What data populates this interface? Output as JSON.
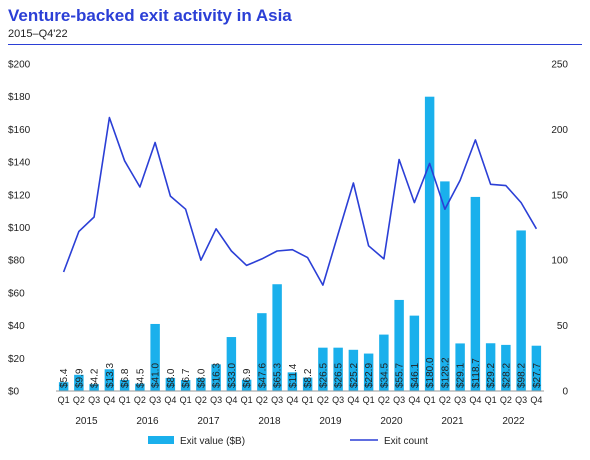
{
  "header": {
    "title": "Venture-backed exit activity in Asia",
    "subtitle": "2015–Q4'22"
  },
  "chart_data": {
    "type": "bar",
    "title": "Venture-backed exit activity in Asia",
    "subtitle": "2015–Q4'22",
    "categories": [
      "Q1",
      "Q2",
      "Q3",
      "Q4",
      "Q1",
      "Q2",
      "Q3",
      "Q4",
      "Q1",
      "Q2",
      "Q3",
      "Q4",
      "Q1",
      "Q2",
      "Q3",
      "Q4",
      "Q1",
      "Q2",
      "Q3",
      "Q4",
      "Q1",
      "Q2",
      "Q3",
      "Q4",
      "Q1",
      "Q2",
      "Q3",
      "Q4",
      "Q1",
      "Q2",
      "Q3",
      "Q4"
    ],
    "years": [
      "2015",
      "2016",
      "2017",
      "2018",
      "2019",
      "2020",
      "2021",
      "2022"
    ],
    "value_labels": [
      "$5.4",
      "$9.9",
      "$4.2",
      "$13.3",
      "$6.8",
      "$4.5",
      "$41.0",
      "$8.0",
      "$6.7",
      "$8.0",
      "$16.3",
      "$33.0",
      "$6.9",
      "$47.6",
      "$65.3",
      "$11.4",
      "$8.2",
      "$26.5",
      "$26.5",
      "$25.2",
      "$22.9",
      "$34.5",
      "$55.7",
      "$46.1",
      "$180.0",
      "$128.2",
      "$29.1",
      "$118.7",
      "$29.2",
      "$28.2",
      "$98.2",
      "$27.7"
    ],
    "series": [
      {
        "name": "Exit value ($B)",
        "type": "bar",
        "axis": "left",
        "color": "#1ab0ec",
        "values": [
          5.4,
          9.9,
          4.2,
          13.3,
          6.8,
          4.5,
          41.0,
          8.0,
          6.7,
          8.0,
          16.3,
          33.0,
          6.9,
          47.6,
          65.3,
          11.4,
          8.2,
          26.5,
          26.5,
          25.2,
          22.9,
          34.5,
          55.7,
          46.1,
          180.0,
          128.2,
          29.1,
          118.7,
          29.2,
          28.2,
          98.2,
          27.7
        ]
      },
      {
        "name": "Exit count",
        "type": "line",
        "axis": "right",
        "color": "#2b3fd6",
        "values": [
          91,
          122,
          133,
          209,
          176,
          156,
          190,
          149,
          139,
          100,
          124,
          107,
          96,
          101,
          107,
          108,
          102,
          81,
          120,
          159,
          111,
          101,
          177,
          144,
          174,
          139,
          161,
          192,
          158,
          157,
          144,
          124
        ]
      }
    ],
    "y_left": {
      "ticks": [
        "$0",
        "$20",
        "$40",
        "$60",
        "$80",
        "$100",
        "$120",
        "$140",
        "$160",
        "$180",
        "$200"
      ],
      "range": [
        0,
        200
      ]
    },
    "y_right": {
      "ticks": [
        "0",
        "50",
        "100",
        "150",
        "200",
        "250"
      ],
      "range": [
        0,
        250
      ]
    },
    "legend": {
      "position": "bottom",
      "items": [
        "Exit value ($B)",
        "Exit count"
      ]
    },
    "grid": false
  }
}
